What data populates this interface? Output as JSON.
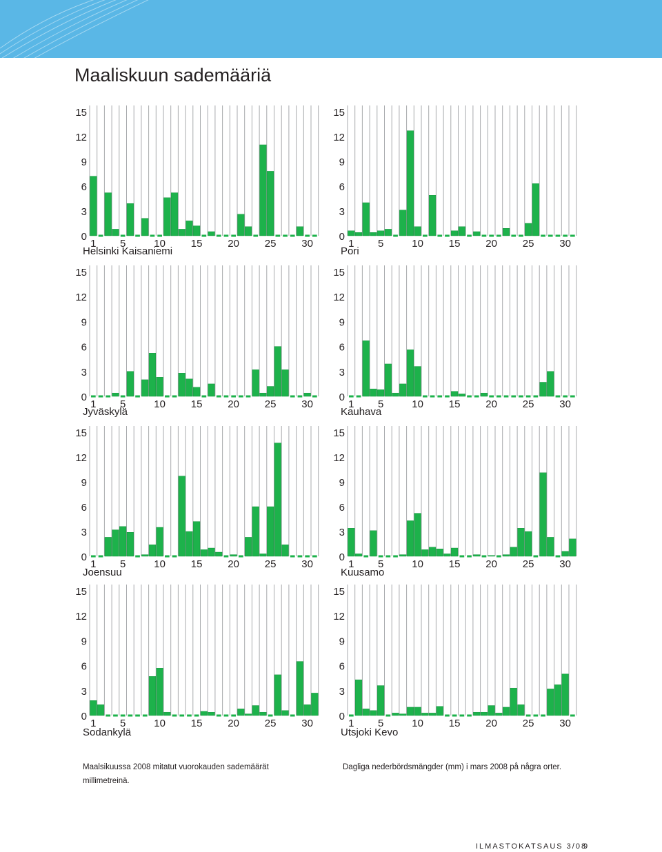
{
  "header": {
    "title": "Maaliskuun sademääriä"
  },
  "colors": {
    "bar": "#1db24b",
    "bar_edge": "#0b8a34",
    "grid": "#a7a9ac",
    "banner": "#5ab7e6",
    "dash": "#1db24b"
  },
  "chart_data": [
    {
      "type": "bar",
      "station": "Helsinki Kaisaniemi",
      "unit": "mm",
      "ylim": [
        0,
        15
      ],
      "yticks": [
        0,
        3,
        6,
        9,
        12,
        15
      ],
      "xticks": [
        1,
        5,
        10,
        15,
        20,
        25,
        30
      ],
      "values": [
        7.2,
        0,
        5.2,
        0.8,
        0,
        3.9,
        0,
        2.1,
        0,
        0,
        4.6,
        5.2,
        0.8,
        1.8,
        1.2,
        0,
        0.5,
        0,
        0,
        0,
        2.6,
        1.1,
        0,
        11.0,
        7.8,
        0,
        0,
        0,
        1.1,
        0,
        0
      ]
    },
    {
      "type": "bar",
      "station": "Pori",
      "unit": "mm",
      "ylim": [
        0,
        15
      ],
      "yticks": [
        0,
        3,
        6,
        9,
        12,
        15
      ],
      "xticks": [
        1,
        5,
        10,
        15,
        20,
        25,
        30
      ],
      "values": [
        0.6,
        0.4,
        4.0,
        0.4,
        0.6,
        0.8,
        0,
        3.1,
        12.7,
        1.1,
        0,
        4.9,
        0,
        0,
        0.6,
        1.1,
        0,
        0.5,
        0,
        0,
        0,
        0.9,
        0,
        0,
        1.5,
        6.3,
        0,
        0,
        0,
        0,
        0
      ]
    },
    {
      "type": "bar",
      "station": "Jyväskylä",
      "unit": "mm",
      "ylim": [
        0,
        15
      ],
      "yticks": [
        0,
        3,
        6,
        9,
        12,
        15
      ],
      "xticks": [
        1,
        5,
        10,
        15,
        20,
        25,
        30
      ],
      "values": [
        0,
        0,
        0,
        0.4,
        0,
        3.0,
        0,
        2.0,
        5.2,
        2.3,
        0,
        0,
        2.8,
        2.1,
        1.1,
        0,
        1.5,
        0,
        0,
        0,
        0,
        0,
        3.2,
        0.4,
        1.2,
        6.0,
        3.2,
        0,
        0,
        0.4,
        0
      ]
    },
    {
      "type": "bar",
      "station": "Kauhava",
      "unit": "mm",
      "ylim": [
        0,
        15
      ],
      "yticks": [
        0,
        3,
        6,
        9,
        12,
        15
      ],
      "xticks": [
        1,
        5,
        10,
        15,
        20,
        25,
        30
      ],
      "values": [
        0,
        0,
        6.7,
        0.9,
        0.8,
        3.9,
        0.4,
        1.5,
        5.6,
        3.6,
        0,
        0,
        0,
        0,
        0.6,
        0.3,
        0,
        0,
        0.4,
        0,
        0,
        0,
        0,
        0,
        0,
        0,
        1.7,
        3.0,
        0,
        0,
        0
      ]
    },
    {
      "type": "bar",
      "station": "Joensuu",
      "unit": "mm",
      "ylim": [
        0,
        15
      ],
      "yticks": [
        0,
        3,
        6,
        9,
        12,
        15
      ],
      "xticks": [
        1,
        5,
        10,
        15,
        20,
        25,
        30
      ],
      "values": [
        0,
        0,
        2.3,
        3.2,
        3.6,
        2.9,
        0,
        0.2,
        1.4,
        3.5,
        0,
        0,
        9.7,
        3.0,
        4.2,
        0.8,
        1.0,
        0.5,
        0,
        0.2,
        0,
        2.3,
        6.0,
        0.3,
        6.0,
        13.7,
        1.4,
        0,
        0,
        0,
        0
      ]
    },
    {
      "type": "bar",
      "station": "Kuusamo",
      "unit": "mm",
      "ylim": [
        0,
        15
      ],
      "yticks": [
        0,
        3,
        6,
        9,
        12,
        15
      ],
      "xticks": [
        1,
        5,
        10,
        15,
        20,
        25,
        30
      ],
      "values": [
        3.4,
        0.3,
        0,
        3.1,
        0,
        0,
        0,
        0.2,
        4.3,
        5.2,
        0.8,
        1.1,
        0.9,
        0.3,
        1.0,
        0,
        0,
        0.2,
        0,
        0.1,
        0,
        0.2,
        1.1,
        3.4,
        3.0,
        0,
        10.1,
        2.3,
        0,
        0.6,
        2.1
      ]
    },
    {
      "type": "bar",
      "station": "Sodankylä",
      "unit": "mm",
      "ylim": [
        0,
        15
      ],
      "yticks": [
        0,
        3,
        6,
        9,
        12,
        15
      ],
      "xticks": [
        1,
        5,
        10,
        15,
        20,
        25,
        30
      ],
      "values": [
        1.8,
        1.3,
        0,
        0,
        0,
        0,
        0,
        0,
        4.7,
        5.7,
        0.4,
        0,
        0,
        0,
        0,
        0.5,
        0.4,
        0,
        0,
        0,
        0.8,
        0.2,
        1.2,
        0.4,
        0,
        4.9,
        0.6,
        0,
        6.5,
        1.3,
        2.7
      ]
    },
    {
      "type": "bar",
      "station": "Utsjoki Kevo",
      "unit": "mm",
      "ylim": [
        0,
        15
      ],
      "yticks": [
        0,
        3,
        6,
        9,
        12,
        15
      ],
      "xticks": [
        1,
        5,
        10,
        15,
        20,
        25,
        30
      ],
      "values": [
        0,
        4.3,
        0.8,
        0.6,
        3.6,
        0,
        0.3,
        0.2,
        1.0,
        1.0,
        0.3,
        0.3,
        1.1,
        0,
        0,
        0,
        0,
        0.4,
        0.4,
        1.2,
        0.3,
        1.0,
        3.3,
        1.3,
        0,
        0,
        0,
        3.2,
        3.7,
        5.0,
        0
      ]
    }
  ],
  "captions": {
    "fi": "Maalsikuussa 2008 mitatut vuorokauden sademäärät millimetreinä.",
    "sv": "Dagliga nederbördsmängder (mm) i mars 2008 på några orter."
  },
  "footer": {
    "publication": "ILMASTOKATSAUS 3/08",
    "page": "9"
  }
}
